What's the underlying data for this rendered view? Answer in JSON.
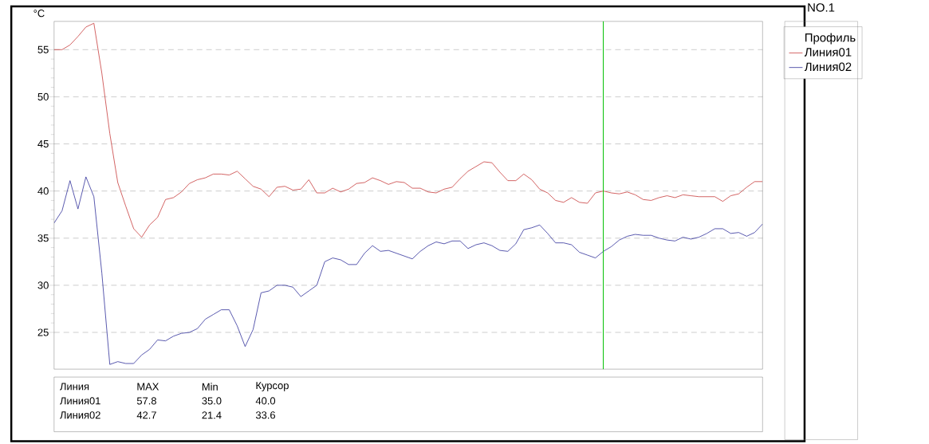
{
  "chart_data": {
    "type": "line",
    "title": "NO.1",
    "ylabel": "°C",
    "legend_title": "Профиль",
    "categories": [
      null,
      null,
      null,
      null,
      null,
      null,
      null,
      null,
      null,
      null,
      null,
      null,
      null,
      null,
      null,
      null,
      null,
      null,
      null,
      null,
      null,
      null,
      null,
      null,
      null,
      null,
      null,
      null,
      null,
      null,
      null,
      null,
      null,
      null,
      null,
      null,
      null,
      null,
      null,
      null,
      null,
      null,
      null,
      null,
      null,
      null,
      null,
      null,
      null,
      null,
      null,
      null,
      null,
      null,
      null,
      null,
      null,
      null,
      null,
      null,
      null,
      null,
      null,
      null,
      null,
      null,
      null,
      null,
      null,
      null,
      null,
      null,
      null,
      null,
      null,
      null,
      null,
      null,
      null,
      null,
      null,
      null,
      null,
      null,
      null,
      null,
      null,
      null,
      null,
      null
    ],
    "ylim": [
      21.1,
      58.0
    ],
    "yticks": [
      25,
      30,
      35,
      40,
      45,
      50,
      55
    ],
    "tick_labels": "y",
    "grid": "y",
    "legend": "right",
    "marker": "none",
    "line_style": "solid",
    "series": [
      {
        "name": "Линия01",
        "color": "#c83c3c",
        "values": [
          55.0,
          55.0,
          55.5,
          56.4,
          57.4,
          57.8,
          52.5,
          46.1,
          40.9,
          38.4,
          36.0,
          35.1,
          36.4,
          37.2,
          39.1,
          39.3,
          39.9,
          40.8,
          41.2,
          41.4,
          41.8,
          41.8,
          41.7,
          42.1,
          41.3,
          40.5,
          40.2,
          39.4,
          40.4,
          40.5,
          40.1,
          40.2,
          41.2,
          39.8,
          39.8,
          40.3,
          39.9,
          40.2,
          40.8,
          40.9,
          41.4,
          41.1,
          40.7,
          41.0,
          40.9,
          40.3,
          40.3,
          39.9,
          39.8,
          40.2,
          40.4,
          41.3,
          42.1,
          42.6,
          43.1,
          43.0,
          42.0,
          41.1,
          41.1,
          41.8,
          41.2,
          40.2,
          39.8,
          39.0,
          38.8,
          39.3,
          38.8,
          38.7,
          39.8,
          40.0,
          39.8,
          39.7,
          39.9,
          39.6,
          39.1,
          39.0,
          39.3,
          39.5,
          39.3,
          39.6,
          39.5,
          39.4,
          39.4,
          39.4,
          38.9,
          39.5,
          39.7,
          40.4,
          41.0,
          41.0
        ]
      },
      {
        "name": "Линия02",
        "color": "#30309a",
        "values": [
          36.6,
          37.9,
          41.1,
          38.1,
          41.5,
          39.4,
          31.3,
          21.6,
          21.9,
          21.7,
          21.7,
          22.6,
          23.2,
          24.2,
          24.1,
          24.6,
          24.9,
          25.0,
          25.4,
          26.4,
          26.9,
          27.4,
          27.4,
          25.7,
          23.5,
          25.3,
          29.2,
          29.4,
          30.0,
          30.0,
          29.8,
          28.8,
          29.4,
          30.0,
          32.5,
          32.9,
          32.7,
          32.2,
          32.2,
          33.4,
          34.2,
          33.6,
          33.7,
          33.4,
          33.1,
          32.8,
          33.6,
          34.2,
          34.6,
          34.4,
          34.7,
          34.7,
          33.9,
          34.3,
          34.5,
          34.2,
          33.7,
          33.6,
          34.4,
          35.9,
          36.1,
          36.4,
          35.5,
          34.5,
          34.5,
          34.3,
          33.5,
          33.2,
          32.9,
          33.6,
          34.1,
          34.8,
          35.2,
          35.4,
          35.3,
          35.3,
          35.0,
          34.8,
          34.7,
          35.1,
          34.9,
          35.1,
          35.5,
          36.0,
          36.0,
          35.5,
          35.6,
          35.2,
          35.6,
          36.5
        ]
      }
    ],
    "annotations": [
      "Линия",
      "MAX",
      "Min",
      "Курсор",
      "Линия01",
      "57.8",
      "35.0",
      "40.0",
      "Линия02",
      "42.7",
      "21.4",
      "33.6"
    ]
  }
}
